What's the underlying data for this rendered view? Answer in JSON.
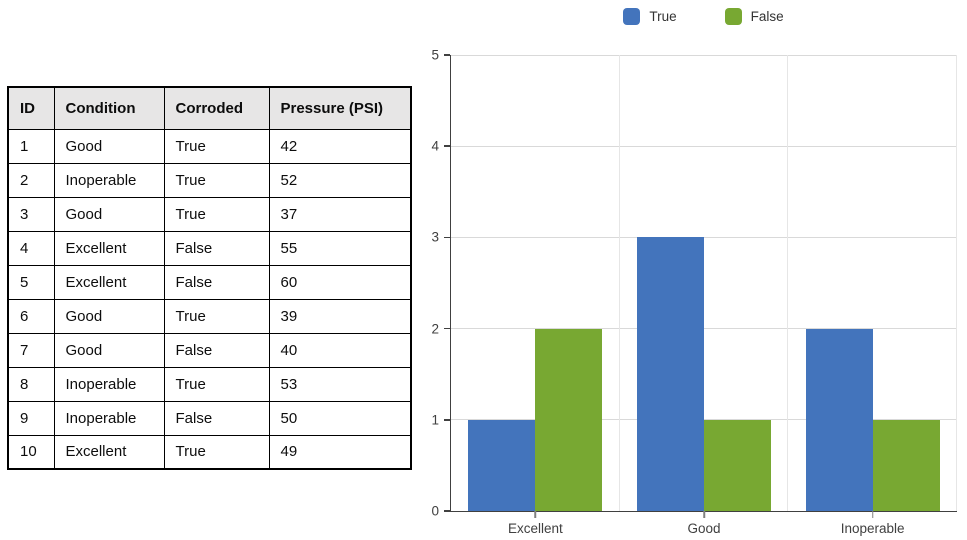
{
  "table": {
    "headers": [
      "ID",
      "Condition",
      "Corroded",
      "Pressure (PSI)"
    ],
    "rows": [
      [
        "1",
        "Good",
        "True",
        "42"
      ],
      [
        "2",
        "Inoperable",
        "True",
        "52"
      ],
      [
        "3",
        "Good",
        "True",
        "37"
      ],
      [
        "4",
        "Excellent",
        "False",
        "55"
      ],
      [
        "5",
        "Excellent",
        "False",
        "60"
      ],
      [
        "6",
        "Good",
        "True",
        "39"
      ],
      [
        "7",
        "Good",
        "False",
        "40"
      ],
      [
        "8",
        "Inoperable",
        "True",
        "53"
      ],
      [
        "9",
        "Inoperable",
        "False",
        "50"
      ],
      [
        "10",
        "Excellent",
        "True",
        "49"
      ]
    ]
  },
  "chart_data": {
    "type": "bar",
    "title": "",
    "xlabel": "",
    "ylabel": "",
    "categories": [
      "Excellent",
      "Good",
      "Inoperable"
    ],
    "series": [
      {
        "name": "True",
        "color": "#4374bc",
        "values": [
          1,
          3,
          2
        ]
      },
      {
        "name": "False",
        "color": "#78a832",
        "values": [
          2,
          1,
          1
        ]
      }
    ],
    "ylim": [
      0,
      5
    ],
    "yticks": [
      0,
      1,
      2,
      3,
      4,
      5
    ],
    "grid": true,
    "legend_position": "top-center"
  },
  "colors": {
    "axis": "#404040",
    "gridline_horizontal": "#d9d9d9",
    "gridline_vertical": "#e6e6e6",
    "table_header_bg": "#e7e6e6",
    "table_border": "#000000"
  }
}
